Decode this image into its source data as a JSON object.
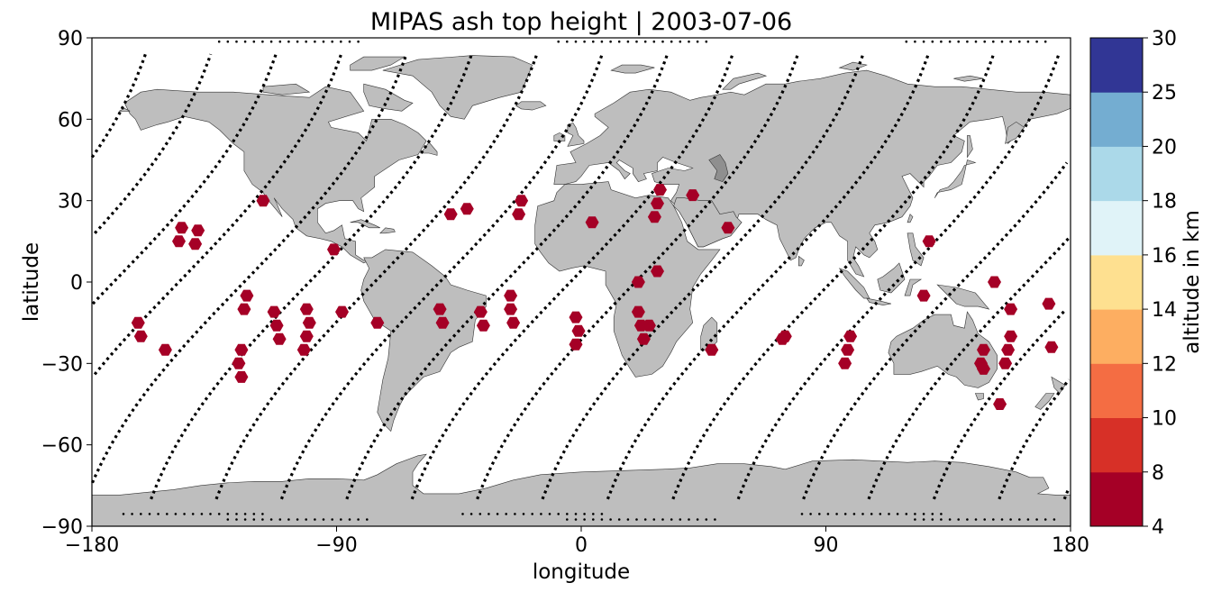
{
  "title": "MIPAS ash top height | 2003-07-06",
  "xlabel": "longitude",
  "ylabel": "latitude",
  "colorbar_label": "altitude in km",
  "x_ticks": [
    {
      "value": -180,
      "label": "−180"
    },
    {
      "value": -90,
      "label": "−90"
    },
    {
      "value": 0,
      "label": "0"
    },
    {
      "value": 90,
      "label": "90"
    },
    {
      "value": 180,
      "label": "180"
    }
  ],
  "y_ticks": [
    {
      "value": 90,
      "label": "90"
    },
    {
      "value": 60,
      "label": "60"
    },
    {
      "value": 30,
      "label": "30"
    },
    {
      "value": 0,
      "label": "0"
    },
    {
      "value": -30,
      "label": "−30"
    },
    {
      "value": -60,
      "label": "−60"
    },
    {
      "value": -90,
      "label": "−90"
    }
  ],
  "colorbar": {
    "bounds": [
      4,
      8,
      10,
      12,
      14,
      16,
      18,
      20,
      25,
      30
    ],
    "colors": [
      "#a50026",
      "#d73027",
      "#f46d43",
      "#fdae61",
      "#fee090",
      "#ffffbf",
      "#e0f3f8",
      "#abd9e9",
      "#74add1",
      "#4575b4",
      "#313695"
    ],
    "tick_labels": [
      "4",
      "8",
      "10",
      "12",
      "14",
      "16",
      "18",
      "20",
      "25",
      "30"
    ]
  },
  "colors": {
    "land": "#bebebe",
    "coast": "#333333",
    "track": "#000000",
    "ash_marker": "#a50026"
  },
  "chart_data": {
    "type": "scatter",
    "title": "MIPAS ash top height | 2003-07-06",
    "xlabel": "longitude",
    "ylabel": "latitude",
    "xlim": [
      -180,
      180
    ],
    "ylim": [
      -90,
      90
    ],
    "grid": false,
    "marker": "hexagon",
    "satellite_ground_tracks": "dotted black lines of MIPAS measurement geolocations",
    "ash_detections": [
      {
        "lon": -163,
        "lat": -15
      },
      {
        "lon": -162,
        "lat": -20
      },
      {
        "lon": -153,
        "lat": -25
      },
      {
        "lon": -148,
        "lat": 15
      },
      {
        "lon": -147,
        "lat": 20
      },
      {
        "lon": -142,
        "lat": 14
      },
      {
        "lon": -141,
        "lat": 19
      },
      {
        "lon": -126,
        "lat": -30
      },
      {
        "lon": -125,
        "lat": -25
      },
      {
        "lon": -125,
        "lat": -35
      },
      {
        "lon": -124,
        "lat": -10
      },
      {
        "lon": -123,
        "lat": -5
      },
      {
        "lon": -117,
        "lat": 30
      },
      {
        "lon": -113,
        "lat": -11
      },
      {
        "lon": -112,
        "lat": -16
      },
      {
        "lon": -111,
        "lat": -21
      },
      {
        "lon": -102,
        "lat": -25
      },
      {
        "lon": -101,
        "lat": -20
      },
      {
        "lon": -101,
        "lat": -10
      },
      {
        "lon": -100,
        "lat": -15
      },
      {
        "lon": -91,
        "lat": 12
      },
      {
        "lon": -88,
        "lat": -11
      },
      {
        "lon": -75,
        "lat": -15
      },
      {
        "lon": -52,
        "lat": -10
      },
      {
        "lon": -51,
        "lat": -15
      },
      {
        "lon": -48,
        "lat": 25
      },
      {
        "lon": -42,
        "lat": 27
      },
      {
        "lon": -37,
        "lat": -11
      },
      {
        "lon": -36,
        "lat": -16
      },
      {
        "lon": -26,
        "lat": -5
      },
      {
        "lon": -26,
        "lat": -10
      },
      {
        "lon": -25,
        "lat": -15
      },
      {
        "lon": -23,
        "lat": 25
      },
      {
        "lon": -22,
        "lat": 30
      },
      {
        "lon": -2,
        "lat": -13
      },
      {
        "lon": -2,
        "lat": -23
      },
      {
        "lon": -1,
        "lat": -18
      },
      {
        "lon": 4,
        "lat": 22
      },
      {
        "lon": 21,
        "lat": 0
      },
      {
        "lon": 21,
        "lat": -11
      },
      {
        "lon": 22,
        "lat": -16
      },
      {
        "lon": 23,
        "lat": -21
      },
      {
        "lon": 25,
        "lat": -16
      },
      {
        "lon": 27,
        "lat": 24
      },
      {
        "lon": 28,
        "lat": 4
      },
      {
        "lon": 28,
        "lat": 29
      },
      {
        "lon": 29,
        "lat": 34
      },
      {
        "lon": 41,
        "lat": 32
      },
      {
        "lon": 48,
        "lat": -25
      },
      {
        "lon": 54,
        "lat": 20
      },
      {
        "lon": 74,
        "lat": -21
      },
      {
        "lon": 75,
        "lat": -20
      },
      {
        "lon": 97,
        "lat": -30
      },
      {
        "lon": 98,
        "lat": -25
      },
      {
        "lon": 99,
        "lat": -20
      },
      {
        "lon": 126,
        "lat": -5
      },
      {
        "lon": 128,
        "lat": 15
      },
      {
        "lon": 147,
        "lat": -30
      },
      {
        "lon": 148,
        "lat": -25
      },
      {
        "lon": 148,
        "lat": -32
      },
      {
        "lon": 152,
        "lat": 0
      },
      {
        "lon": 154,
        "lat": -45
      },
      {
        "lon": 156,
        "lat": -30
      },
      {
        "lon": 157,
        "lat": -25
      },
      {
        "lon": 158,
        "lat": -10
      },
      {
        "lon": 158,
        "lat": -20
      },
      {
        "lon": 172,
        "lat": -8
      },
      {
        "lon": 173,
        "lat": -24
      }
    ],
    "ash_top_height_km": 8,
    "colorbar_label": "altitude in km",
    "colorbar_range": [
      4,
      30
    ]
  }
}
